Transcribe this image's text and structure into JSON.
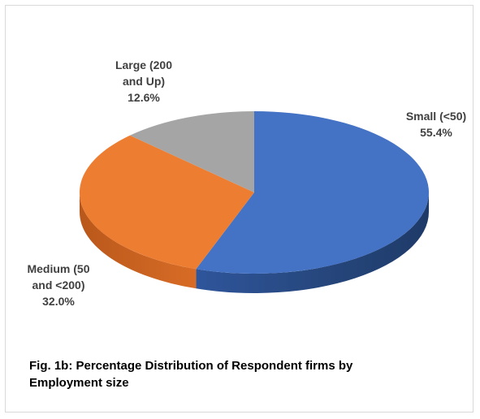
{
  "chart_data": {
    "type": "pie",
    "style": "3d",
    "title": "",
    "slices": [
      {
        "label_lines": [
          "Small (<50)"
        ],
        "value": 55.4,
        "value_label": "55.4%",
        "color": "#4472c4"
      },
      {
        "label_lines": [
          "Medium (50",
          "and <200)"
        ],
        "value": 32.0,
        "value_label": "32.0%",
        "color": "#ed7d31"
      },
      {
        "label_lines": [
          "Large (200",
          "and Up)"
        ],
        "value": 12.6,
        "value_label": "12.6%",
        "color": "#a5a5a5"
      }
    ],
    "legend": "none"
  },
  "caption": {
    "line1": "Fig. 1b: Percentage Distribution of Respondent firms by",
    "line2": "Employment size"
  }
}
